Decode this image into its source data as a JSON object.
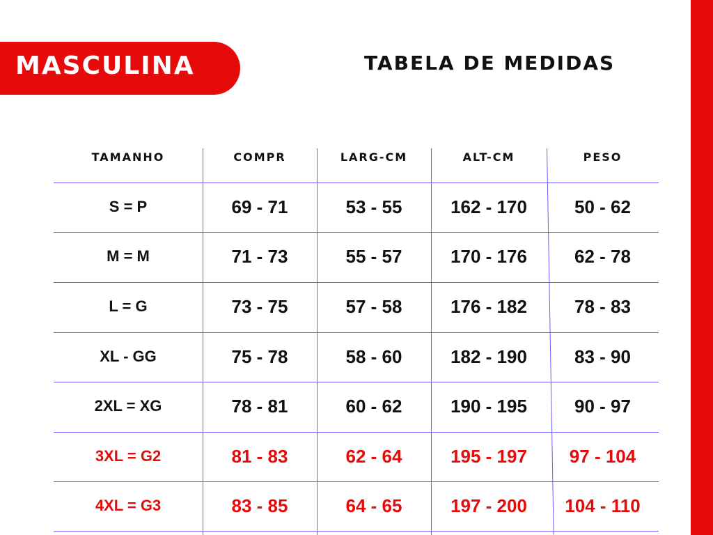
{
  "badge": "MASCULINA",
  "title": "TABELA DE MEDIDAS",
  "colors": {
    "accent": "#e60b0b",
    "grid": "#6a5cff"
  },
  "table": {
    "headers": [
      "TAMANHO",
      "COMPR",
      "LARG-CM",
      "ALT-CM",
      "PESO"
    ],
    "rows": [
      {
        "cells": [
          "S = P",
          "69 - 71",
          "53 - 55",
          "162 - 170",
          "50 - 62"
        ],
        "highlight": false
      },
      {
        "cells": [
          "M = M",
          "71 - 73",
          "55 - 57",
          "170 - 176",
          "62 - 78"
        ],
        "highlight": false
      },
      {
        "cells": [
          "L = G",
          "73 - 75",
          "57 - 58",
          "176 - 182",
          "78 - 83"
        ],
        "highlight": false
      },
      {
        "cells": [
          "XL - GG",
          "75 - 78",
          "58 - 60",
          "182 - 190",
          "83 - 90"
        ],
        "highlight": false
      },
      {
        "cells": [
          "2XL = XG",
          "78 - 81",
          "60 - 62",
          "190 - 195",
          "90 - 97"
        ],
        "highlight": false
      },
      {
        "cells": [
          "3XL = G2",
          "81 - 83",
          "62 - 64",
          "195 - 197",
          "97 - 104"
        ],
        "highlight": true
      },
      {
        "cells": [
          "4XL = G3",
          "83 - 85",
          "64 - 65",
          "197 - 200",
          "104 - 110"
        ],
        "highlight": true
      }
    ]
  }
}
